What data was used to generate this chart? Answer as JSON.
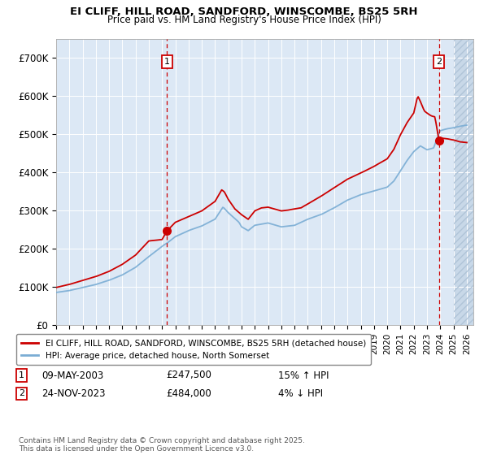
{
  "title": "EI CLIFF, HILL ROAD, SANDFORD, WINSCOMBE, BS25 5RH",
  "subtitle": "Price paid vs. HM Land Registry's House Price Index (HPI)",
  "legend_line1": "EI CLIFF, HILL ROAD, SANDFORD, WINSCOMBE, BS25 5RH (detached house)",
  "legend_line2": "HPI: Average price, detached house, North Somerset",
  "sale1_date": "09-MAY-2003",
  "sale1_price": "£247,500",
  "sale1_hpi": "15% ↑ HPI",
  "sale2_date": "24-NOV-2023",
  "sale2_price": "£484,000",
  "sale2_hpi": "4% ↓ HPI",
  "footer": "Contains HM Land Registry data © Crown copyright and database right 2025.\nThis data is licensed under the Open Government Licence v3.0.",
  "xlim_start": 1995.0,
  "xlim_end": 2026.5,
  "ylim_min": 0,
  "ylim_max": 750000,
  "plot_bg_color": "#dce8f5",
  "red_line_color": "#cc0000",
  "blue_line_color": "#7aadd4",
  "vline_color": "#cc0000",
  "sale1_x": 2003.37,
  "sale1_y": 247500,
  "sale2_x": 2023.9,
  "sale2_y": 484000,
  "hatch_start": 2025.0,
  "yticks": [
    0,
    100000,
    200000,
    300000,
    400000,
    500000,
    600000,
    700000
  ],
  "ytick_labels": [
    "£0",
    "£100K",
    "£200K",
    "£300K",
    "£400K",
    "£500K",
    "£600K",
    "£700K"
  ]
}
